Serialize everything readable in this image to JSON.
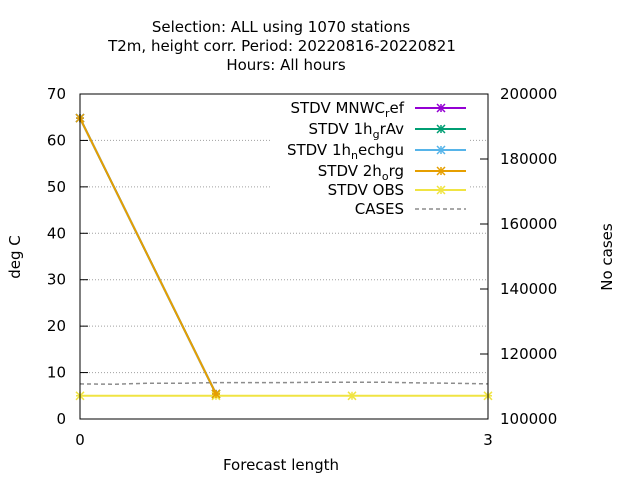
{
  "chart_data": {
    "type": "line",
    "title_lines": [
      "Selection: ALL using  1070 stations",
      "T2m, height corr.   Period: 20220816-20220821",
      "Hours:  All hours"
    ],
    "xlabel": "Forecast length",
    "ylabel": "deg C",
    "y2label": "No cases",
    "xlim": [
      0,
      3
    ],
    "ylim": [
      0,
      70
    ],
    "y2lim": [
      100000,
      200000
    ],
    "xticks": [
      "0",
      "3"
    ],
    "yticks": [
      "0",
      "10",
      "20",
      "30",
      "40",
      "50",
      "60",
      "70"
    ],
    "y2ticks": [
      "100000",
      "120000",
      "140000",
      "160000",
      "180000",
      "200000"
    ],
    "grid": "horizontal dotted",
    "legend_position": "top-right",
    "series": [
      {
        "legend": {
          "pre": "STDV MNWC",
          "sub": "r",
          "post": "ef"
        },
        "color": "#9400d3",
        "marker": "star",
        "dash": "solid",
        "axis": "y",
        "x": [
          0,
          1
        ],
        "y": [
          64.8,
          5.4
        ]
      },
      {
        "legend": {
          "pre": "STDV 1h",
          "sub": "g",
          "post": "rAv"
        },
        "color": "#009e73",
        "marker": "star",
        "dash": "solid",
        "axis": "y",
        "x": [
          0,
          1
        ],
        "y": [
          64.8,
          5.4
        ]
      },
      {
        "legend": {
          "pre": "STDV 1h",
          "sub": "n",
          "post": "echgu"
        },
        "color": "#56b4e9",
        "marker": "star",
        "dash": "solid",
        "axis": "y",
        "x": [
          0,
          1
        ],
        "y": [
          64.8,
          5.4
        ]
      },
      {
        "legend": {
          "pre": "STDV 2h",
          "sub": "o",
          "post": "rg"
        },
        "color": "#e69f00",
        "marker": "star",
        "dash": "solid",
        "axis": "y",
        "x": [
          0,
          1
        ],
        "y": [
          64.8,
          5.4
        ]
      },
      {
        "legend": {
          "pre": "STDV OBS",
          "sub": "",
          "post": ""
        },
        "color": "#f0e442",
        "marker": "star",
        "dash": "solid",
        "axis": "y",
        "x": [
          0,
          1,
          2,
          3
        ],
        "y": [
          5.0,
          5.0,
          5.0,
          5.0
        ]
      },
      {
        "legend": {
          "pre": "CASES",
          "sub": "",
          "post": ""
        },
        "color": "#8c8c8c",
        "marker": "none",
        "dash": "dashed",
        "axis": "y2",
        "x": [
          0,
          0.25,
          0.5,
          0.75,
          1.0,
          1.25,
          1.5,
          1.75,
          2.0,
          2.25,
          2.5,
          2.75,
          3.0
        ],
        "y": [
          110800,
          110700,
          111000,
          111000,
          111200,
          111200,
          111200,
          111300,
          111300,
          111300,
          111100,
          111000,
          110800
        ]
      }
    ]
  }
}
